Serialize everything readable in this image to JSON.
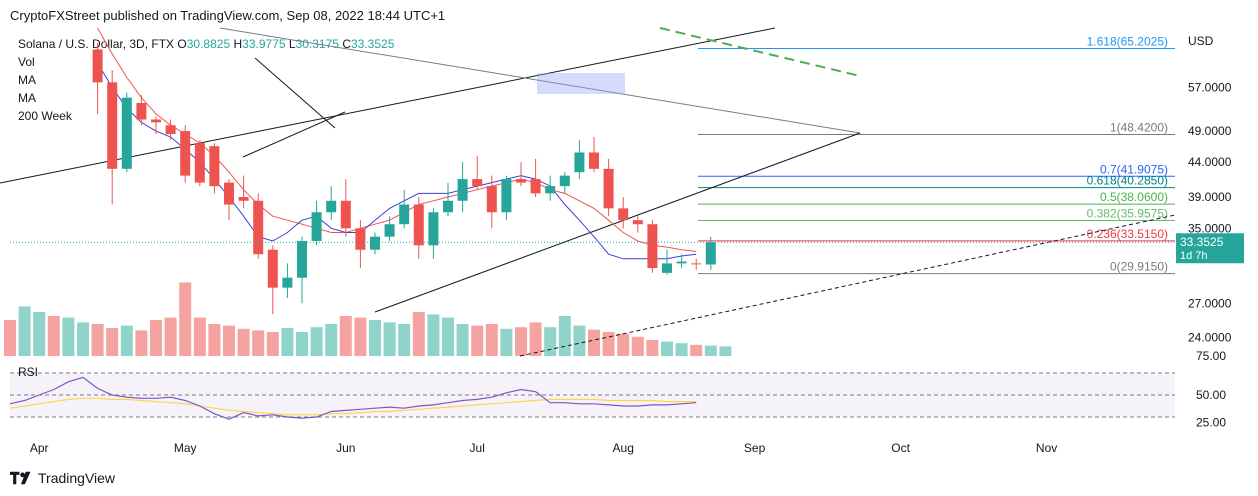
{
  "header": {
    "text": "CryptoFXStreet published on TradingView.com, Sep 08, 2022 18:44 UTC+1"
  },
  "legend": {
    "symbol": "Solana / U.S. Dollar, 3D, FTX",
    "o_label": "O",
    "o_value": "30.8825",
    "h_label": "H",
    "h_value": "33.9775",
    "l_label": "L",
    "l_value": "30.3175",
    "c_label": "C",
    "c_value": "33.3525",
    "indicators": [
      "Vol",
      "MA",
      "MA",
      "200 Week"
    ]
  },
  "footer": {
    "brand": "TradingView"
  },
  "colors": {
    "up": "#26a69a",
    "down": "#ef5350",
    "up_vol": "#8fd3cb",
    "down_vol": "#f5a3a1",
    "ma_fast": "#3b3fd6",
    "ma_slow": "#ef5350",
    "rsi": "#7e57c2",
    "rsi_ma": "#ffd54f",
    "fib": "#1e88e5"
  },
  "chart_data": {
    "type": "candlestick",
    "title": "Solana / U.S. Dollar, 3D, FTX",
    "currency_label": "USD",
    "price_axis_ticks": [
      "57.0000",
      "49.0000",
      "44.0000",
      "39.0000",
      "35.0000",
      "27.0000",
      "24.0000"
    ],
    "price_axis_tick_values": [
      57,
      49,
      44,
      39,
      35,
      27,
      24
    ],
    "ylim": [
      22.5,
      70
    ],
    "x_labels": [
      "Apr",
      "May",
      "Jun",
      "Jul",
      "Aug",
      "Sep",
      "Oct",
      "Nov"
    ],
    "x_label_indices": [
      2,
      12,
      23,
      32,
      42,
      51,
      61,
      71
    ],
    "last_price": {
      "value": 33.3525,
      "label": "33.3525",
      "countdown": "1d 7h"
    },
    "candles": [
      {
        "o": 65.0,
        "h": 66.5,
        "l": 52.0,
        "c": 58.0
      },
      {
        "o": 58.0,
        "h": 60.5,
        "l": 38.0,
        "c": 43.0
      },
      {
        "o": 43.0,
        "h": 56.0,
        "l": 42.5,
        "c": 55.0
      },
      {
        "o": 54.0,
        "h": 55.5,
        "l": 50.0,
        "c": 51.0
      },
      {
        "o": 51.0,
        "h": 51.5,
        "l": 48.5,
        "c": 50.5
      },
      {
        "o": 50.0,
        "h": 51.0,
        "l": 47.5,
        "c": 48.5
      },
      {
        "o": 49.0,
        "h": 50.0,
        "l": 41.0,
        "c": 42.0
      },
      {
        "o": 47.0,
        "h": 47.5,
        "l": 40.5,
        "c": 41.0
      },
      {
        "o": 46.5,
        "h": 47.0,
        "l": 39.5,
        "c": 40.5
      },
      {
        "o": 41.0,
        "h": 41.5,
        "l": 36.0,
        "c": 38.0
      },
      {
        "o": 39.0,
        "h": 42.0,
        "l": 37.5,
        "c": 38.5
      },
      {
        "o": 38.5,
        "h": 39.5,
        "l": 31.5,
        "c": 32.0
      },
      {
        "o": 32.5,
        "h": 33.0,
        "l": 26.0,
        "c": 28.5
      },
      {
        "o": 28.5,
        "h": 31.0,
        "l": 27.5,
        "c": 29.5
      },
      {
        "o": 29.5,
        "h": 34.0,
        "l": 27.0,
        "c": 33.5
      },
      {
        "o": 33.5,
        "h": 38.5,
        "l": 33.0,
        "c": 37.0
      },
      {
        "o": 37.0,
        "h": 40.5,
        "l": 36.0,
        "c": 38.5
      },
      {
        "o": 38.5,
        "h": 41.5,
        "l": 34.0,
        "c": 35.0
      },
      {
        "o": 35.0,
        "h": 36.0,
        "l": 30.5,
        "c": 32.5
      },
      {
        "o": 32.5,
        "h": 34.5,
        "l": 32.0,
        "c": 34.0
      },
      {
        "o": 34.0,
        "h": 36.5,
        "l": 33.5,
        "c": 35.5
      },
      {
        "o": 35.5,
        "h": 40.0,
        "l": 35.0,
        "c": 38.0
      },
      {
        "o": 38.0,
        "h": 39.0,
        "l": 31.5,
        "c": 33.0
      },
      {
        "o": 33.0,
        "h": 37.5,
        "l": 31.5,
        "c": 37.0
      },
      {
        "o": 37.0,
        "h": 41.0,
        "l": 36.5,
        "c": 38.5
      },
      {
        "o": 38.5,
        "h": 44.0,
        "l": 37.0,
        "c": 41.5
      },
      {
        "o": 41.5,
        "h": 45.0,
        "l": 40.0,
        "c": 40.5
      },
      {
        "o": 40.5,
        "h": 42.0,
        "l": 35.0,
        "c": 37.0
      },
      {
        "o": 37.0,
        "h": 42.0,
        "l": 36.0,
        "c": 41.5
      },
      {
        "o": 41.5,
        "h": 44.0,
        "l": 40.5,
        "c": 41.0
      },
      {
        "o": 41.5,
        "h": 44.5,
        "l": 39.0,
        "c": 39.5
      },
      {
        "o": 39.5,
        "h": 42.0,
        "l": 38.5,
        "c": 40.5
      },
      {
        "o": 40.5,
        "h": 42.5,
        "l": 39.5,
        "c": 42.0
      },
      {
        "o": 42.5,
        "h": 47.5,
        "l": 41.5,
        "c": 45.5
      },
      {
        "o": 45.5,
        "h": 48.0,
        "l": 42.5,
        "c": 43.0
      },
      {
        "o": 43.0,
        "h": 44.5,
        "l": 36.5,
        "c": 37.5
      },
      {
        "o": 37.5,
        "h": 39.0,
        "l": 35.0,
        "c": 36.0
      },
      {
        "o": 36.0,
        "h": 36.5,
        "l": 34.5,
        "c": 35.5
      },
      {
        "o": 35.5,
        "h": 36.0,
        "l": 30.0,
        "c": 30.5
      },
      {
        "o": 30.0,
        "h": 32.5,
        "l": 29.8,
        "c": 31.0
      },
      {
        "o": 31.0,
        "h": 32.0,
        "l": 30.5,
        "c": 31.2
      },
      {
        "o": 31.0,
        "h": 31.5,
        "l": 30.3,
        "c": 30.9
      },
      {
        "o": 30.8825,
        "h": 33.9775,
        "l": 30.3175,
        "c": 33.3525
      }
    ],
    "candle_start_index": 6,
    "volume": [
      0.45,
      0.62,
      0.55,
      0.5,
      0.48,
      0.42,
      0.4,
      0.35,
      0.38,
      0.32,
      0.45,
      0.48,
      0.92,
      0.48,
      0.4,
      0.38,
      0.34,
      0.32,
      0.3,
      0.35,
      0.3,
      0.36,
      0.4,
      0.5,
      0.48,
      0.45,
      0.42,
      0.4,
      0.55,
      0.52,
      0.48,
      0.4,
      0.38,
      0.4,
      0.34,
      0.36,
      0.42,
      0.36,
      0.5,
      0.38,
      0.33,
      0.3,
      0.28,
      0.24,
      0.2,
      0.18,
      0.16,
      0.14,
      0.13,
      0.12
    ],
    "ma_fast": [
      null,
      null,
      null,
      null,
      null,
      null,
      62.0,
      57.0,
      53.0,
      50.5,
      49.0,
      48.0,
      46.0,
      44.0,
      41.5,
      39.0,
      36.5,
      34.0,
      33.5,
      34.5,
      36.0,
      36.5,
      35.0,
      34.5,
      34.5,
      36.0,
      37.5,
      38.5,
      39.5,
      39.5,
      39.5,
      40.0,
      40.5,
      41.0,
      41.5,
      42.0,
      41.5,
      40.5,
      38.0,
      36.0,
      34.0,
      32.0,
      31.5,
      31.5,
      31.5,
      31.5,
      31.8,
      32.0
    ],
    "ma_slow": [
      null,
      null,
      null,
      null,
      null,
      null,
      70.0,
      64.0,
      59.0,
      55.0,
      52.0,
      50.0,
      48.5,
      47.0,
      45.0,
      42.5,
      40.0,
      38.0,
      36.5,
      36.0,
      35.5,
      35.0,
      34.5,
      34.5,
      35.0,
      35.5,
      36.0,
      37.0,
      38.0,
      38.5,
      39.0,
      39.5,
      40.0,
      40.5,
      41.0,
      41.5,
      41.0,
      40.0,
      39.5,
      38.5,
      37.5,
      36.0,
      34.5,
      33.5,
      33.0,
      32.8,
      32.5,
      32.3
    ],
    "rsi": {
      "label": "RSI",
      "ticks": [
        "75.00",
        "50.00",
        "25.00"
      ],
      "tick_values": [
        75,
        50,
        25
      ],
      "upper_band": 70,
      "lower_band": 30,
      "values": [
        42,
        45,
        50,
        55,
        62,
        66,
        56,
        50,
        48,
        47,
        47,
        48,
        45,
        40,
        33,
        28,
        34,
        31,
        32,
        30,
        29,
        30,
        35,
        36,
        37,
        38,
        39,
        38,
        40,
        41,
        43,
        45,
        46,
        48,
        52,
        55,
        53,
        43,
        43,
        42,
        42,
        41,
        40,
        40,
        41,
        41,
        42,
        43
      ],
      "ma": [
        38,
        40,
        42,
        44,
        46,
        47,
        47,
        46,
        46,
        45,
        44,
        43,
        42,
        40,
        38,
        36,
        35,
        34,
        33,
        32,
        32,
        32,
        33,
        33,
        34,
        35,
        35,
        36,
        37,
        38,
        39,
        40,
        41,
        42,
        43,
        44,
        45,
        46,
        46,
        46,
        46,
        45,
        45,
        45,
        45,
        44,
        44,
        44
      ]
    },
    "fib_levels": [
      {
        "label": "1.618(65.2025)",
        "value": 65.2025,
        "color": "#2196f3"
      },
      {
        "label": "1(48.4200)",
        "value": 48.42,
        "color": "#787b86"
      },
      {
        "label": "0.7(41.9075)",
        "value": 41.9075,
        "color": "#2962ff"
      },
      {
        "label": "0.618(40.2850)",
        "value": 40.285,
        "color": "#00838f"
      },
      {
        "label": "0.5(38.0600)",
        "value": 38.06,
        "color": "#4caf50"
      },
      {
        "label": "0.382(35.9575)",
        "value": 35.9575,
        "color": "#66bb6a"
      },
      {
        "label": "0.236(33.5150)",
        "value": 33.515,
        "color": "#f23645"
      },
      {
        "label": "0(29.9150)",
        "value": 29.915,
        "color": "#787b86"
      }
    ]
  }
}
